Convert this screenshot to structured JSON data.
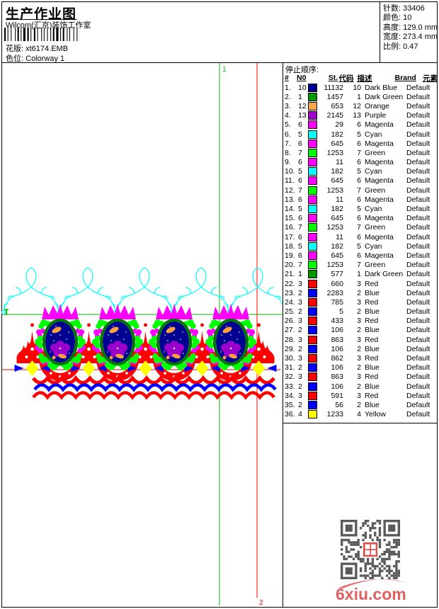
{
  "header": {
    "title": "生产作业图",
    "studio": "Wilcom(汇京)装饰工作室",
    "pattern_label": "花版:",
    "pattern_value": "xt6174.EMB",
    "colorway_label": "色位:",
    "colorway_value": "Colorway 1",
    "stats": [
      {
        "label": "针数:",
        "value": "33406"
      },
      {
        "label": "颜色:",
        "value": "10"
      },
      {
        "label": "高度:",
        "value": "129.0 mm"
      },
      {
        "label": "宽度:",
        "value": "273.4 mm"
      },
      {
        "label": "比例:",
        "value": "0.47"
      }
    ]
  },
  "stop_table": {
    "title": "停止顺序:",
    "columns": [
      "#",
      "N0",
      "St.",
      "代码",
      "描述",
      "Brand",
      "元素"
    ],
    "rows": [
      [
        "1.",
        "10",
        "#000090",
        "11132",
        "10",
        "Dark Blue",
        "Default",
        ""
      ],
      [
        "2.",
        "1",
        "#009800",
        "1457",
        "1",
        "Dark Green",
        "Default",
        ""
      ],
      [
        "3.",
        "12",
        "#FFA64D",
        "653",
        "12",
        "Orange",
        "Default",
        ""
      ],
      [
        "4.",
        "13",
        "#A000C8",
        "2145",
        "13",
        "Purple",
        "Default",
        ""
      ],
      [
        "5.",
        "6",
        "#FF00FF",
        "29",
        "6",
        "Magenta",
        "Default",
        ""
      ],
      [
        "6.",
        "5",
        "#00FFFF",
        "182",
        "5",
        "Cyan",
        "Default",
        ""
      ],
      [
        "7.",
        "6",
        "#FF00FF",
        "645",
        "6",
        "Magenta",
        "Default",
        ""
      ],
      [
        "8.",
        "7",
        "#00FF00",
        "1253",
        "7",
        "Green",
        "Default",
        ""
      ],
      [
        "9.",
        "6",
        "#FF00FF",
        "11",
        "6",
        "Magenta",
        "Default",
        ""
      ],
      [
        "10.",
        "5",
        "#00FFFF",
        "182",
        "5",
        "Cyan",
        "Default",
        ""
      ],
      [
        "11.",
        "6",
        "#FF00FF",
        "645",
        "6",
        "Magenta",
        "Default",
        ""
      ],
      [
        "12.",
        "7",
        "#00FF00",
        "1253",
        "7",
        "Green",
        "Default",
        ""
      ],
      [
        "13.",
        "6",
        "#FF00FF",
        "11",
        "6",
        "Magenta",
        "Default",
        ""
      ],
      [
        "14.",
        "5",
        "#00FFFF",
        "182",
        "5",
        "Cyan",
        "Default",
        ""
      ],
      [
        "15.",
        "6",
        "#FF00FF",
        "645",
        "6",
        "Magenta",
        "Default",
        ""
      ],
      [
        "16.",
        "7",
        "#00FF00",
        "1253",
        "7",
        "Green",
        "Default",
        ""
      ],
      [
        "17.",
        "6",
        "#FF00FF",
        "11",
        "6",
        "Magenta",
        "Default",
        ""
      ],
      [
        "18.",
        "5",
        "#00FFFF",
        "182",
        "5",
        "Cyan",
        "Default",
        ""
      ],
      [
        "19.",
        "6",
        "#FF00FF",
        "645",
        "6",
        "Magenta",
        "Default",
        ""
      ],
      [
        "20.",
        "7",
        "#00FF00",
        "1253",
        "7",
        "Green",
        "Default",
        ""
      ],
      [
        "21.",
        "1",
        "#009800",
        "577",
        "1",
        "Dark Green",
        "Default",
        ""
      ],
      [
        "22.",
        "3",
        "#FF0000",
        "660",
        "3",
        "Red",
        "Default",
        ""
      ],
      [
        "23.",
        "2",
        "#0000FF",
        "2283",
        "2",
        "Blue",
        "Default",
        ""
      ],
      [
        "24.",
        "3",
        "#FF0000",
        "785",
        "3",
        "Red",
        "Default",
        ""
      ],
      [
        "25.",
        "2",
        "#0000FF",
        "5",
        "2",
        "Blue",
        "Default",
        ""
      ],
      [
        "26.",
        "3",
        "#FF0000",
        "433",
        "3",
        "Red",
        "Default",
        ""
      ],
      [
        "27.",
        "2",
        "#0000FF",
        "106",
        "2",
        "Blue",
        "Default",
        ""
      ],
      [
        "28.",
        "3",
        "#FF0000",
        "863",
        "3",
        "Red",
        "Default",
        ""
      ],
      [
        "29.",
        "2",
        "#0000FF",
        "106",
        "2",
        "Blue",
        "Default",
        ""
      ],
      [
        "30.",
        "3",
        "#FF0000",
        "862",
        "3",
        "Red",
        "Default",
        ""
      ],
      [
        "31.",
        "2",
        "#0000FF",
        "106",
        "2",
        "Blue",
        "Default",
        ""
      ],
      [
        "32.",
        "3",
        "#FF0000",
        "863",
        "3",
        "Red",
        "Default",
        ""
      ],
      [
        "33.",
        "2",
        "#0000FF",
        "106",
        "2",
        "Blue",
        "Default",
        ""
      ],
      [
        "34.",
        "3",
        "#FF0000",
        "591",
        "3",
        "Red",
        "Default",
        ""
      ],
      [
        "35.",
        "2",
        "#0000FF",
        "56",
        "2",
        "Blue",
        "Default",
        ""
      ],
      [
        "36.",
        "4",
        "#FFFF00",
        "1233",
        "4",
        "Yellow",
        "Default",
        ""
      ]
    ]
  },
  "design": {
    "marker_top": "1",
    "marker_bottom": "2",
    "colors": {
      "dark_blue": "#000090",
      "dark_green": "#007800",
      "orange": "#FFA040",
      "purple": "#9900CC",
      "magenta": "#FF00FF",
      "cyan": "#00FFFF",
      "green": "#00FF00",
      "red": "#FF0000",
      "blue": "#0000FF",
      "yellow": "#FFFF00",
      "guide_green": "#00C000",
      "guide_red": "#FF0000",
      "wm_red": "#E06060",
      "qr_dark": "#5A5A5A",
      "qr_stamp": "#E05050"
    }
  },
  "watermark": "6xiu.com"
}
